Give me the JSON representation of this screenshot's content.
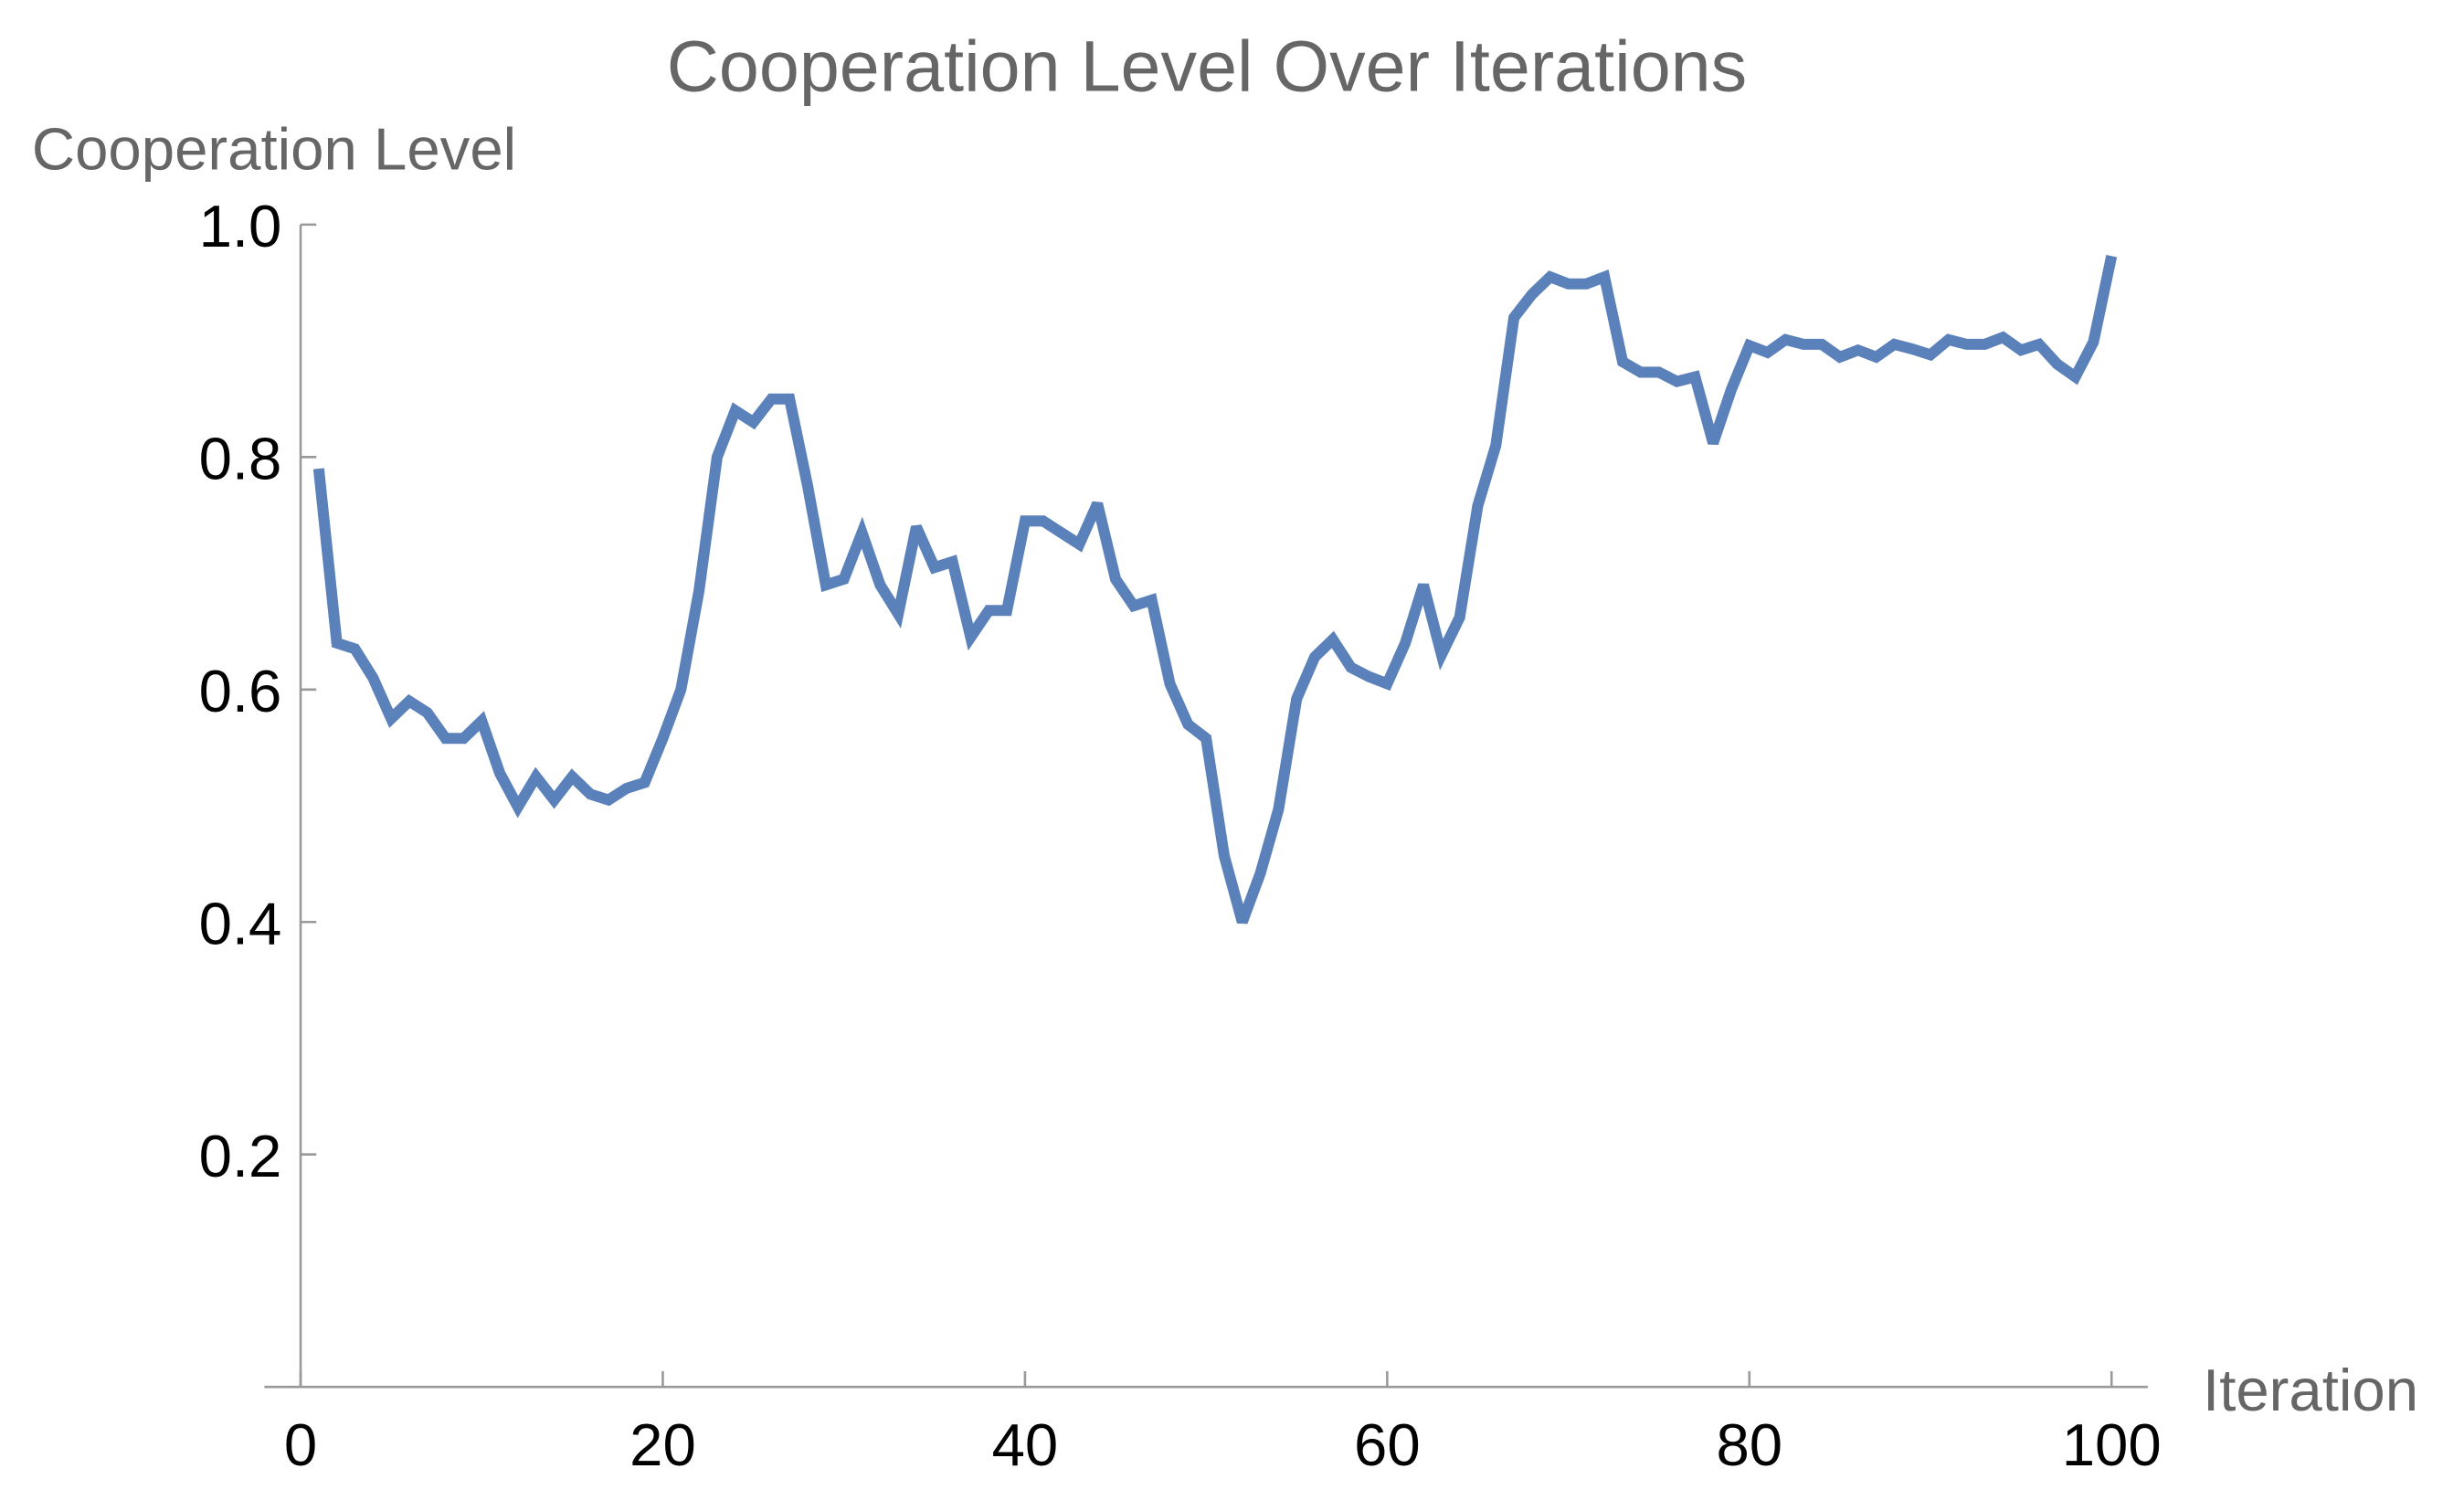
{
  "chart_data": {
    "type": "line",
    "title": "Cooperation Level Over Iterations",
    "y_label": "Cooperation Level",
    "x_label": "Iteration",
    "x": [
      1,
      2,
      3,
      4,
      5,
      6,
      7,
      8,
      9,
      10,
      11,
      12,
      13,
      14,
      15,
      16,
      17,
      18,
      19,
      20,
      21,
      22,
      23,
      24,
      25,
      26,
      27,
      28,
      29,
      30,
      31,
      32,
      33,
      34,
      35,
      36,
      37,
      38,
      39,
      40,
      41,
      42,
      43,
      44,
      45,
      46,
      47,
      48,
      49,
      50,
      51,
      52,
      53,
      54,
      55,
      56,
      57,
      58,
      59,
      60,
      61,
      62,
      63,
      64,
      65,
      66,
      67,
      68,
      69,
      70,
      71,
      72,
      73,
      74,
      75,
      76,
      77,
      78,
      79,
      80,
      81,
      82,
      83,
      84,
      85,
      86,
      87,
      88,
      89,
      90,
      91,
      92,
      93,
      94,
      95,
      96,
      97,
      98,
      99,
      100
    ],
    "series": [
      {
        "name": "Cooperation Level",
        "color": "#5b81ba",
        "values": [
          0.79,
          0.64,
          0.635,
          0.61,
          0.575,
          0.59,
          0.58,
          0.558,
          0.558,
          0.573,
          0.528,
          0.499,
          0.525,
          0.505,
          0.525,
          0.51,
          0.505,
          0.515,
          0.52,
          0.558,
          0.6,
          0.685,
          0.8,
          0.84,
          0.83,
          0.85,
          0.85,
          0.775,
          0.69,
          0.695,
          0.735,
          0.69,
          0.665,
          0.74,
          0.705,
          0.71,
          0.645,
          0.668,
          0.668,
          0.745,
          0.745,
          0.735,
          0.725,
          0.76,
          0.695,
          0.672,
          0.677,
          0.605,
          0.57,
          0.558,
          0.457,
          0.4,
          0.442,
          0.497,
          0.592,
          0.628,
          0.643,
          0.619,
          0.611,
          0.605,
          0.64,
          0.69,
          0.63,
          0.662,
          0.758,
          0.81,
          0.92,
          0.94,
          0.955,
          0.949,
          0.949,
          0.955,
          0.882,
          0.873,
          0.873,
          0.865,
          0.869,
          0.812,
          0.858,
          0.896,
          0.89,
          0.901,
          0.897,
          0.897,
          0.886,
          0.892,
          0.886,
          0.897,
          0.893,
          0.888,
          0.901,
          0.897,
          0.897,
          0.903,
          0.892,
          0.897,
          0.88,
          0.869,
          0.899,
          0.973
        ]
      }
    ],
    "xlim": [
      -2,
      102
    ],
    "ylim": [
      0,
      1
    ],
    "xticks": [
      0,
      20,
      40,
      60,
      80,
      100
    ],
    "yticks": [
      0.2,
      0.4,
      0.6,
      0.8,
      {
        "value": 1,
        "label": "1.0"
      }
    ]
  }
}
